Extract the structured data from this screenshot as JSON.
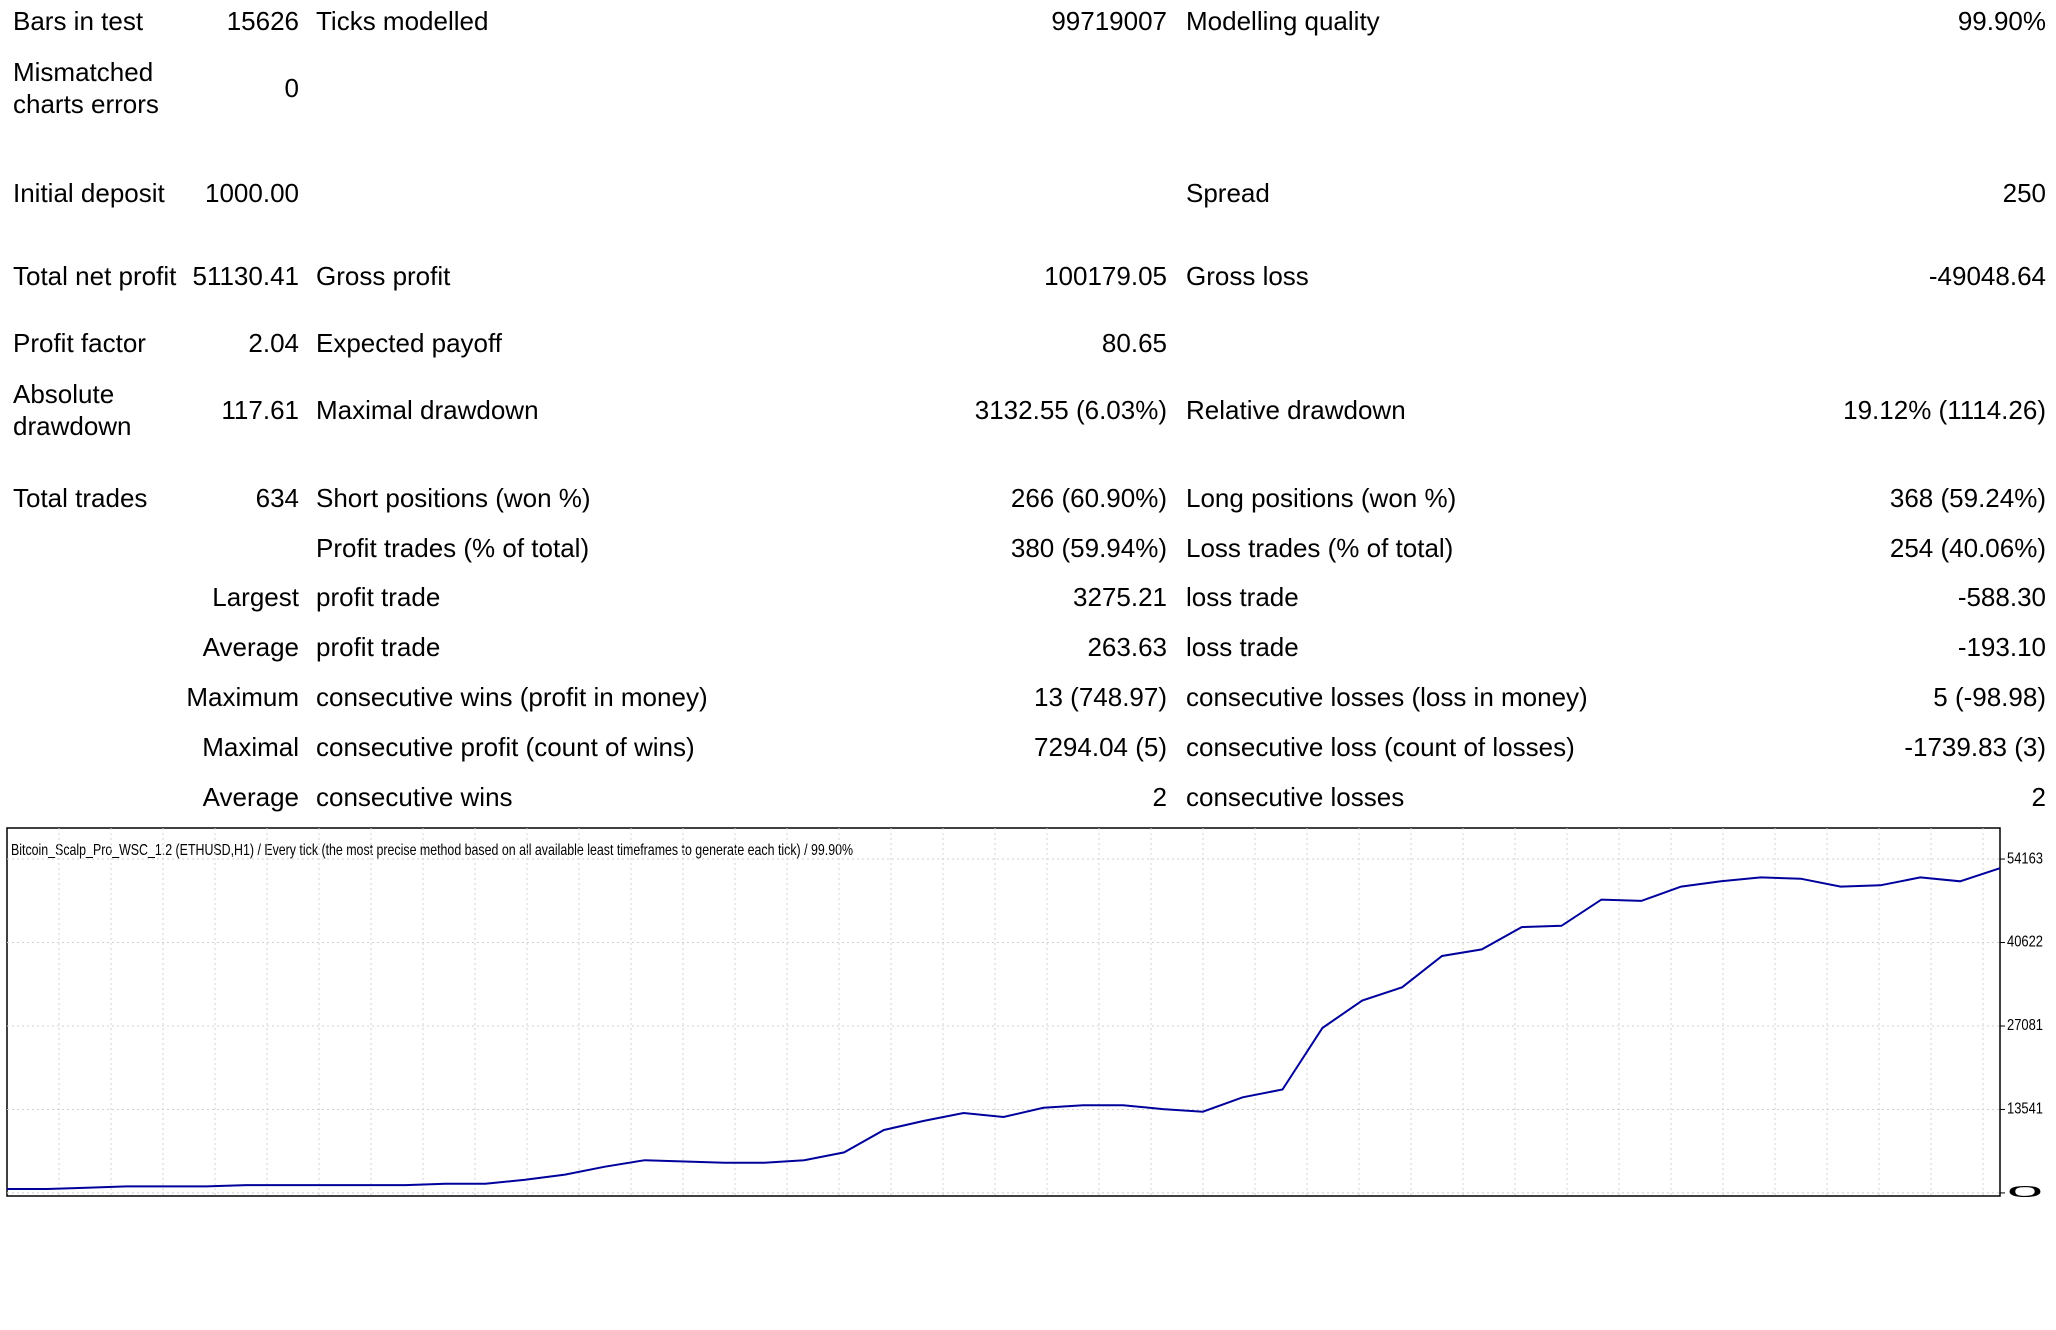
{
  "table": {
    "rows": [
      [
        "Bars in test",
        "15626",
        "Ticks modelled",
        "99719007",
        "Modelling quality",
        "99.90%"
      ],
      [
        "Mismatched charts errors",
        "0",
        null,
        null,
        null,
        null
      ],
      [
        "Initial deposit",
        "1000.00",
        null,
        null,
        "Spread",
        "250"
      ],
      [
        "Total net profit",
        "51130.41",
        "Gross profit",
        "100179.05",
        "Gross loss",
        "-49048.64"
      ],
      [
        "Profit factor",
        "2.04",
        "Expected payoff",
        "80.65",
        null,
        null
      ],
      [
        "Absolute drawdown",
        "117.61",
        "Maximal drawdown",
        "3132.55 (6.03%)",
        "Relative drawdown",
        "19.12% (1114.26)"
      ],
      [
        "Total trades",
        "634",
        "Short positions (won %)",
        "266 (60.90%)",
        "Long positions (won %)",
        "368 (59.24%)"
      ],
      [
        null,
        null,
        "Profit trades (% of total)",
        "380 (59.94%)",
        "Loss trades (% of total)",
        "254 (40.06%)"
      ],
      [
        null,
        "Largest",
        "profit trade",
        "3275.21",
        "loss trade",
        "-588.30"
      ],
      [
        null,
        "Average",
        "profit trade",
        "263.63",
        "loss trade",
        "-193.10"
      ],
      [
        null,
        "Maximum",
        "consecutive wins (profit in money)",
        "13 (748.97)",
        "consecutive losses (loss in money)",
        "5 (-98.98)"
      ],
      [
        null,
        "Maximal",
        "consecutive profit (count of wins)",
        "7294.04 (5)",
        "consecutive loss (count of losses)",
        "-1739.83 (3)"
      ],
      [
        null,
        "Average",
        "consecutive wins",
        "2",
        "consecutive losses",
        "2"
      ]
    ]
  },
  "chart_data": {
    "type": "line",
    "title": "Bitcoin_Scalp_Pro_WSC_1.2 (ETHUSD,H1) / Every tick (the most precise method based on all available least timeframes to generate each tick) / 99.90%",
    "series": [
      {
        "name": null,
        "color": "#00009c",
        "values": [
          640,
          640,
          850,
          1060,
          1060,
          1060,
          1270,
          1270,
          1270,
          1270,
          1270,
          1490,
          1490,
          2120,
          2970,
          4250,
          5310,
          5100,
          4890,
          4890,
          5310,
          6580,
          10200,
          11680,
          12960,
          12320,
          13810,
          14230,
          14230,
          13590,
          13170,
          15510,
          16780,
          26760,
          31220,
          33350,
          38440,
          39510,
          43120,
          43330,
          47580,
          47370,
          49700,
          50550,
          51190,
          50980,
          49700,
          49910,
          51190,
          50550,
          52680
        ]
      }
    ],
    "ylim": [
      -500,
      59200
    ],
    "yticks": [
      0,
      13541,
      27081,
      40622,
      54163
    ],
    "grid": true
  }
}
